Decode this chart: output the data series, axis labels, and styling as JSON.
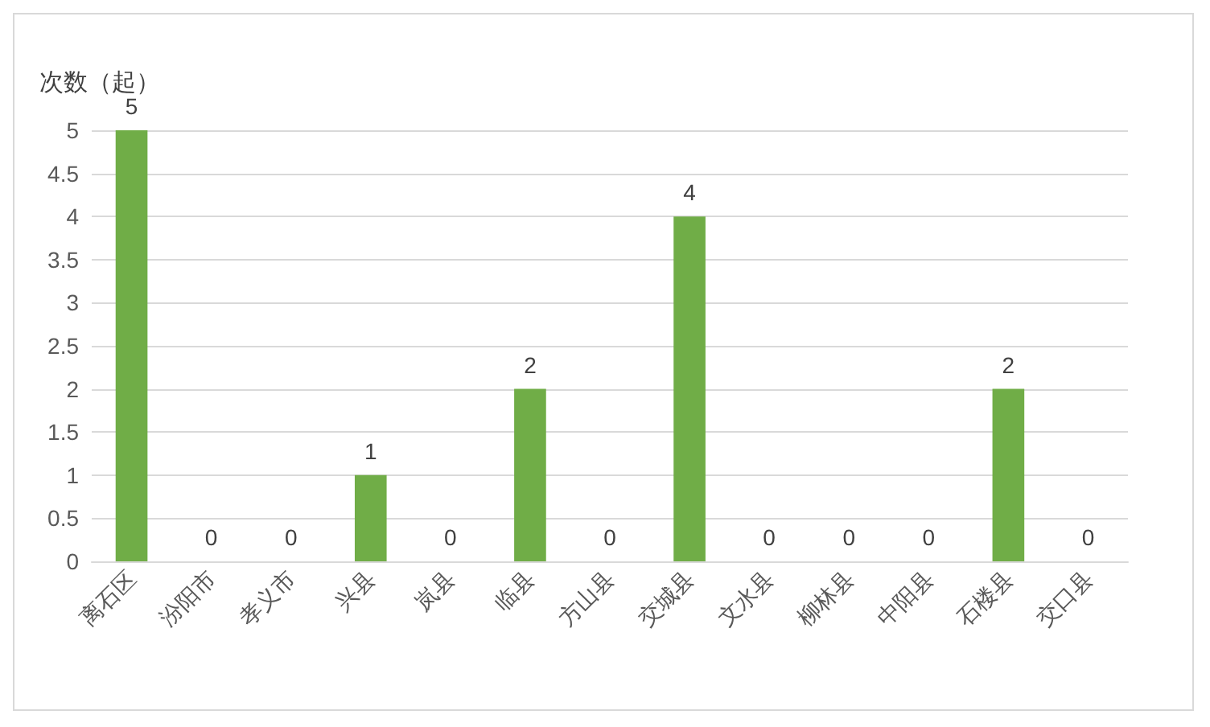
{
  "chart_data": {
    "type": "bar",
    "ylabel": "次数（起）",
    "categories": [
      "离石区",
      "汾阳市",
      "孝义市",
      "兴县",
      "岚县",
      "临县",
      "方山县",
      "交城县",
      "文水县",
      "柳林县",
      "中阳县",
      "石楼县",
      "交口县"
    ],
    "values": [
      5,
      0,
      0,
      1,
      0,
      2,
      0,
      4,
      0,
      0,
      0,
      2,
      0
    ],
    "color": "#70ad47",
    "ylim": [
      0,
      5
    ],
    "yticks": [
      0,
      0.5,
      1,
      1.5,
      2,
      2.5,
      3,
      3.5,
      4,
      4.5,
      5
    ],
    "grid": "y",
    "data_labels": true
  }
}
